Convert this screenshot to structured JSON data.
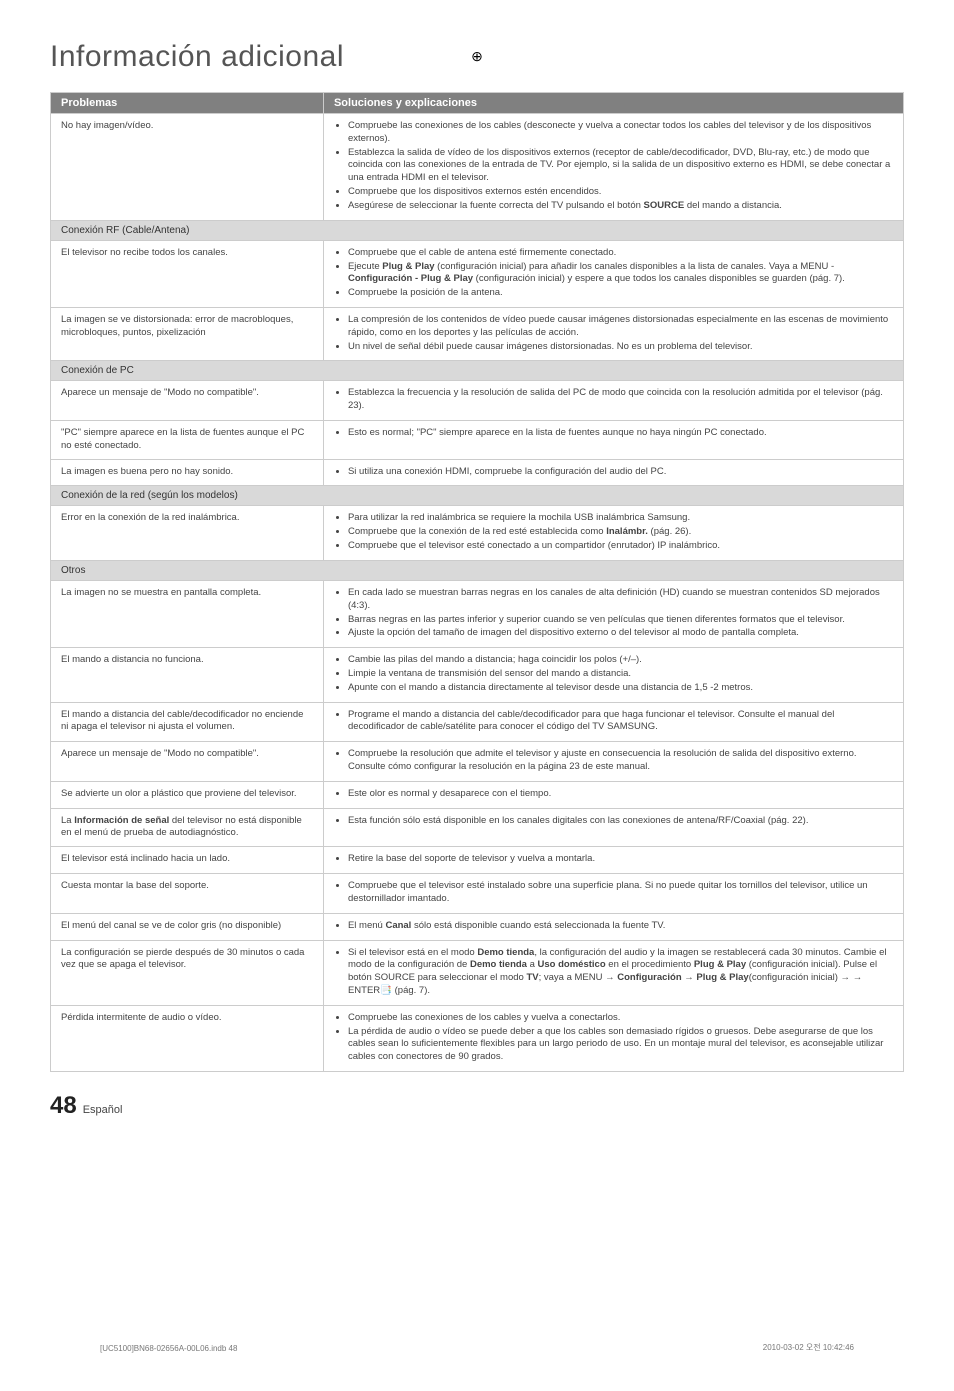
{
  "page_title": "Información adicional",
  "table": {
    "header": {
      "col1": "Problemas",
      "col2": "Soluciones y explicaciones"
    },
    "rows": [
      {
        "type": "row",
        "problem": "No hay imagen/vídeo.",
        "items": [
          "Compruebe las conexiones de los cables (desconecte y vuelva a conectar todos los cables del televisor y de los dispositivos externos).",
          "Establezca la salida de vídeo de los dispositivos externos (receptor de cable/decodificador, DVD, Blu-ray, etc.) de modo que coincida con las conexiones de la entrada de TV. Por ejemplo, si la salida de un dispositivo externo es HDMI, se debe conectar a una entrada HDMI en el televisor.",
          "Compruebe que los dispositivos externos estén encendidos.",
          "Asegúrese de seleccionar la fuente correcta del TV pulsando el botón <b>SOURCE</b> del mando a distancia."
        ]
      },
      {
        "type": "section",
        "label": "Conexión RF (Cable/Antena)"
      },
      {
        "type": "row",
        "problem": "El televisor no recibe todos los canales.",
        "items": [
          "Compruebe que el cable de antena esté firmemente conectado.",
          "Ejecute <b>Plug & Play</b> (configuración inicial) para añadir los canales disponibles a la lista de canales. Vaya a MENU - <b>Configuración - Plug & Play</b> (configuración inicial) y espere a que todos los canales disponibles se guarden (pág. 7).",
          "Compruebe la posición de la antena."
        ]
      },
      {
        "type": "row",
        "problem": "La imagen se ve distorsionada: error de macrobloques, microbloques, puntos, pixelización",
        "items": [
          "La compresión de los contenidos de vídeo puede causar imágenes distorsionadas especialmente en las escenas de movimiento rápido, como en los deportes y las películas de acción.",
          "Un nivel de señal débil puede causar imágenes distorsionadas. No es un problema del televisor."
        ]
      },
      {
        "type": "section",
        "label": "Conexión de PC"
      },
      {
        "type": "row",
        "problem": "Aparece un mensaje de \"Modo no compatible\".",
        "items": [
          "Establezca la frecuencia y la resolución de salida del PC de modo que coincida con la resolución admitida por el televisor (pág. 23)."
        ]
      },
      {
        "type": "row",
        "problem": "\"PC\" siempre aparece en la lista de fuentes aunque el PC no esté conectado.",
        "items": [
          "Esto es normal; \"PC\" siempre aparece en la lista de fuentes aunque no haya ningún PC conectado."
        ]
      },
      {
        "type": "row",
        "problem": "La imagen es buena pero no hay sonido.",
        "items": [
          "Si utiliza una conexión HDMI, compruebe la configuración del audio del PC."
        ]
      },
      {
        "type": "section",
        "label": "Conexión de la red (según los modelos)"
      },
      {
        "type": "row",
        "problem": "Error en la conexión de la red inalámbrica.",
        "items": [
          "Para utilizar la red inalámbrica se requiere la mochila USB inalámbrica Samsung.",
          "Compruebe que la conexión de la red esté establecida como <b>Inalámbr.</b> (pág. 26).",
          "Compruebe que el televisor esté conectado a un compartidor (enrutador) IP inalámbrico."
        ]
      },
      {
        "type": "section",
        "label": "Otros"
      },
      {
        "type": "row",
        "problem": "La imagen no se muestra en pantalla completa.",
        "items": [
          "En cada lado se muestran barras negras en los canales de alta definición (HD) cuando se muestran contenidos SD mejorados (4:3).",
          "Barras negras en las partes inferior y superior cuando se ven películas que tienen diferentes formatos que el televisor.",
          "Ajuste la opción del tamaño de imagen del dispositivo externo o del televisor al modo de pantalla completa."
        ]
      },
      {
        "type": "row",
        "problem": "El mando a distancia no funciona.",
        "items": [
          "Cambie las pilas del mando a distancia; haga coincidir los polos (+/–).",
          "Limpie la ventana de transmisión del sensor del mando a distancia.",
          "Apunte con el mando a distancia directamente al televisor desde una distancia de 1,5 -2 metros."
        ]
      },
      {
        "type": "row",
        "problem": "El mando a distancia del cable/decodificador no enciende ni apaga el televisor ni ajusta el volumen.",
        "items": [
          "Programe el mando a distancia del cable/decodificador para que haga funcionar el televisor. Consulte el manual del decodificador de cable/satélite para conocer el código del TV SAMSUNG."
        ]
      },
      {
        "type": "row",
        "problem": "Aparece un mensaje de \"Modo no compatible\".",
        "items": [
          "Compruebe la resolución que admite el televisor y ajuste en consecuencia la resolución de salida del dispositivo externo. Consulte cómo configurar la resolución en la página 23 de este manual."
        ]
      },
      {
        "type": "row",
        "problem": "Se advierte un olor a plástico que proviene del televisor.",
        "items": [
          "Este olor es normal y desaparece con el tiempo."
        ]
      },
      {
        "type": "row",
        "problem": "La <b>Información de señal</b> del televisor no está disponible en el menú de prueba de autodiagnóstico.",
        "items": [
          "Esta función sólo está disponible en los canales digitales con las conexiones de antena/RF/Coaxial (pág. 22)."
        ]
      },
      {
        "type": "row",
        "problem": "El televisor está inclinado hacia un lado.",
        "items": [
          "Retire la base del soporte de televisor y vuelva a montarla."
        ]
      },
      {
        "type": "row",
        "problem": "Cuesta montar la base del soporte.",
        "items": [
          "Compruebe que el televisor esté instalado sobre una superficie plana. Si no puede quitar los tornillos del televisor, utilice un destornillador imantado."
        ]
      },
      {
        "type": "row",
        "problem": "El menú del canal se ve de color gris (no disponible)",
        "items": [
          "El menú <b>Canal</b> sólo está disponible cuando está seleccionada la fuente TV."
        ]
      },
      {
        "type": "row",
        "problem": "La configuración se pierde después de 30 minutos o cada vez que se apaga el televisor.",
        "items": [
          "Si el televisor está en el modo <b>Demo tienda</b>, la configuración del audio y la imagen se restablecerá cada 30 minutos. Cambie el modo de la configuración de <b>Demo tienda</b> a <b>Uso doméstico</b> en el procedimiento <b>Plug & Play</b> (configuración inicial). Pulse el botón SOURCE para seleccionar el modo <b>TV</b>; vaya a MENU → <b>Configuración → Plug & Play</b>(configuración inicial) → → ENTER📑 (pág. 7)."
        ]
      },
      {
        "type": "row",
        "problem": "Pérdida intermitente de audio o vídeo.",
        "items": [
          "Compruebe las conexiones de los cables y vuelva a conectarlos.",
          "La pérdida de audio o vídeo se puede deber a que los cables son demasiado rígidos o gruesos. Debe asegurarse de que los cables sean lo suficientemente flexibles para un largo periodo de uso. En un montaje mural del televisor, es aconsejable utilizar cables con conectores de 90 grados."
        ]
      }
    ]
  },
  "footer": {
    "page_num": "48",
    "lang": "Español"
  },
  "bottom_left": "[UC5100]BN68-02656A-00L06.indb   48",
  "bottom_right": "2010-03-02   오전 10:42:46"
}
